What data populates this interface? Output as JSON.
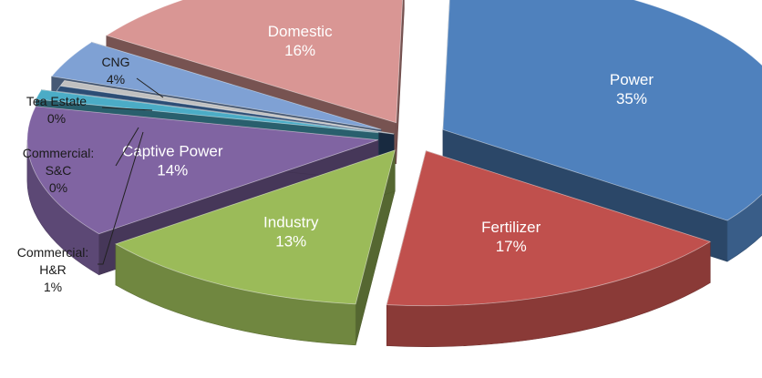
{
  "chart_data": {
    "type": "pie",
    "style": "3d-exploded",
    "title": "",
    "legend": "none",
    "slices": [
      {
        "name": "Power",
        "name_lines": [
          "Power"
        ],
        "value": 35,
        "label": "35%",
        "color": "#4f81bd"
      },
      {
        "name": "Fertilizer",
        "name_lines": [
          "Fertilizer"
        ],
        "value": 17,
        "label": "17%",
        "color": "#c0504d"
      },
      {
        "name": "Industry",
        "name_lines": [
          "Industry"
        ],
        "value": 13,
        "label": "13%",
        "color": "#9bbb59"
      },
      {
        "name": "Captive Power",
        "name_lines": [
          "Captive Power"
        ],
        "value": 14,
        "label": "14%",
        "color": "#8064a2"
      },
      {
        "name": "Commercial: H&R",
        "name_lines": [
          "Commercial:",
          "H&R"
        ],
        "value": 1,
        "label": "1%",
        "color": "#4bacc6"
      },
      {
        "name": "Commercial: S&C",
        "name_lines": [
          "Commercial:",
          "S&C"
        ],
        "value": 0,
        "label": "0%",
        "color": "#2c4d75"
      },
      {
        "name": "Tea Estate",
        "name_lines": [
          "Tea Estate"
        ],
        "value": 0,
        "label": "0%",
        "color": "#c0c0c0"
      },
      {
        "name": "CNG",
        "name_lines": [
          "CNG"
        ],
        "value": 4,
        "label": "4%",
        "color": "#7fa1d4"
      },
      {
        "name": "Domestic",
        "name_lines": [
          "Domestic"
        ],
        "value": 16,
        "label": "16%",
        "color": "#d99694"
      }
    ]
  }
}
